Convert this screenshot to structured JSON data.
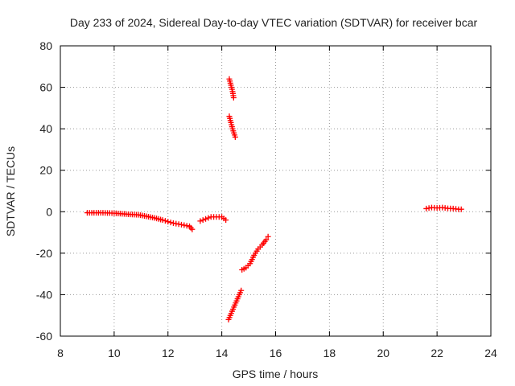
{
  "chart_data": {
    "type": "scatter",
    "title": "Day 233 of 2024, Sidereal Day-to-day VTEC variation (SDTVAR) for receiver bcar",
    "xlabel": "GPS time / hours",
    "ylabel": "SDTVAR / TECUs",
    "xlim": [
      8,
      24
    ],
    "ylim": [
      -60,
      80
    ],
    "xticks": [
      8,
      10,
      12,
      14,
      16,
      18,
      20,
      22,
      24
    ],
    "yticks": [
      -60,
      -40,
      -20,
      0,
      20,
      40,
      60,
      80
    ],
    "grid": true,
    "marker": "plus",
    "series": [
      {
        "name": "SDTVAR",
        "color": "#ff0000",
        "segments": [
          {
            "x": [
              9.0,
              9.5,
              10.0,
              10.3,
              10.6,
              10.9,
              11.2,
              11.5,
              11.8,
              12.0,
              12.2,
              12.4,
              12.6,
              12.8,
              12.9
            ],
            "y": [
              -0.5,
              -0.5,
              -0.7,
              -1.0,
              -1.3,
              -1.5,
              -2.2,
              -3.0,
              -4.0,
              -4.8,
              -5.5,
              -6.0,
              -6.5,
              -7.0,
              -8.5
            ]
          },
          {
            "x": [
              13.2,
              13.4,
              13.6,
              13.8,
              14.0,
              14.15
            ],
            "y": [
              -4.5,
              -3.5,
              -2.5,
              -2.5,
              -2.5,
              -4.0
            ]
          },
          {
            "x": [
              14.28,
              14.32,
              14.36,
              14.4,
              14.44
            ],
            "y": [
              64.0,
              62.0,
              60.0,
              58.0,
              55.0
            ]
          },
          {
            "x": [
              14.28,
              14.32,
              14.36,
              14.4,
              14.45,
              14.5
            ],
            "y": [
              46.0,
              44.0,
              42.0,
              40.0,
              38.0,
              36.0
            ]
          },
          {
            "x": [
              14.25,
              14.35,
              14.45,
              14.55,
              14.65,
              14.72
            ],
            "y": [
              -52.0,
              -49.0,
              -46.0,
              -43.0,
              -40.0,
              -38.0
            ]
          },
          {
            "x": [
              14.75,
              14.9,
              15.05,
              15.2,
              15.35,
              15.5,
              15.65,
              15.72
            ],
            "y": [
              -28.0,
              -27.0,
              -25.0,
              -21.0,
              -18.0,
              -16.0,
              -13.5,
              -12.0
            ]
          },
          {
            "x": [
              21.6,
              21.8,
              22.0,
              22.2,
              22.4,
              22.6,
              22.8,
              22.9
            ],
            "y": [
              1.5,
              2.0,
              1.8,
              2.0,
              1.6,
              1.5,
              1.2,
              1.2
            ]
          }
        ]
      }
    ]
  }
}
